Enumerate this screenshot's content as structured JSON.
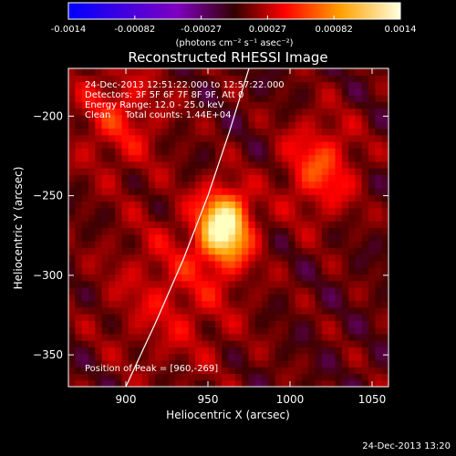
{
  "colorbar": {
    "ticks": [
      "-0.0014",
      "-0.00082",
      "-0.00027",
      "0.00027",
      "0.00082",
      "0.0014"
    ],
    "units": "(photons cm⁻² s⁻¹ asec⁻²)",
    "range": [
      -0.0014,
      0.0014
    ]
  },
  "plot": {
    "title": "Reconstructed RHESSI Image",
    "annotations": [
      "24-Dec-2013 12:51:22.000 to 12:57:22.000",
      "Detectors: 3F 5F 6F 7F 8F 9F, Att 0",
      "Energy Range: 12.0 - 25.0 keV",
      "Clean     Total counts: 1.44E+04"
    ],
    "peak_label": "Position of Peak = [960,-269]"
  },
  "footer": {
    "timestamp": "24-Dec-2013 13:20"
  },
  "chart_data": {
    "type": "heatmap",
    "title": "Reconstructed RHESSI Image",
    "xlabel": "Heliocentric X (arcsec)",
    "ylabel": "Heliocentric Y (arcsec)",
    "xlim": [
      865,
      1060
    ],
    "ylim": [
      -370,
      -170
    ],
    "xticks": [
      900,
      950,
      1000,
      1050
    ],
    "yticks": [
      -200,
      -250,
      -300,
      -350
    ],
    "peak": {
      "x": 960,
      "y": -269
    },
    "sources": [
      {
        "x": 960,
        "y": -269,
        "sigma_x": 11,
        "sigma_y": 16,
        "amplitude": 1.0
      },
      {
        "x": 1018,
        "y": -232,
        "sigma_x": 16,
        "sigma_y": 22,
        "amplitude": 0.42
      },
      {
        "x": 930,
        "y": -310,
        "sigma_x": 30,
        "sigma_y": 35,
        "amplitude": 0.25
      },
      {
        "x": 895,
        "y": -200,
        "sigma_x": 20,
        "sigma_y": 25,
        "amplitude": 0.3
      }
    ],
    "limb_curve": [
      {
        "x": 900,
        "y": -370
      },
      {
        "x": 918,
        "y": -330
      },
      {
        "x": 935,
        "y": -290
      },
      {
        "x": 950,
        "y": -250
      },
      {
        "x": 963,
        "y": -210
      },
      {
        "x": 975,
        "y": -170
      }
    ],
    "colormap": [
      "#0000ff",
      "#8000c0",
      "#400000",
      "#ff0000",
      "#ffa000",
      "#ffffc0"
    ]
  }
}
